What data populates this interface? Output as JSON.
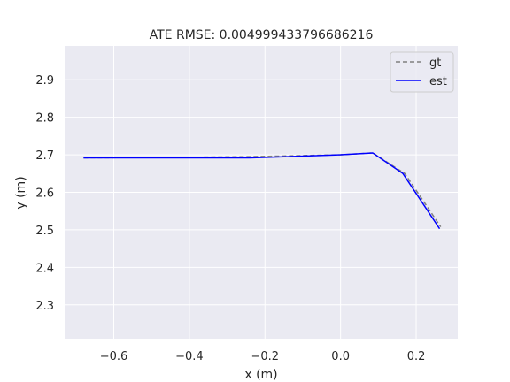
{
  "chart_data": {
    "type": "line",
    "title": "ATE RMSE: 0.004999433796686216",
    "xlabel": "x (m)",
    "ylabel": "y (m)",
    "xlim": [
      -0.73,
      0.31
    ],
    "ylim": [
      2.21,
      2.99
    ],
    "x_ticks": [
      -0.6,
      -0.4,
      -0.2,
      0.0,
      0.2
    ],
    "x_tick_labels": [
      "−0.6",
      "−0.4",
      "−0.2",
      "0.0",
      "0.2"
    ],
    "y_ticks": [
      2.3,
      2.4,
      2.5,
      2.6,
      2.7,
      2.8,
      2.9
    ],
    "y_tick_labels": [
      "2.3",
      "2.4",
      "2.5",
      "2.6",
      "2.7",
      "2.8",
      "2.9"
    ],
    "grid": true,
    "legend_position": "top-right",
    "series": [
      {
        "name": "gt",
        "style": "dashed",
        "color": "#808080",
        "x": [
          -0.68,
          -0.45,
          -0.25,
          -0.15,
          0.0,
          0.085,
          0.17,
          0.265
        ],
        "y": [
          2.692,
          2.693,
          2.695,
          2.697,
          2.7,
          2.705,
          2.65,
          2.508
        ]
      },
      {
        "name": "est",
        "style": "solid",
        "color": "#0000ff",
        "x": [
          -0.68,
          -0.45,
          -0.24,
          -0.15,
          0.0,
          0.085,
          0.165,
          0.262
        ],
        "y": [
          2.692,
          2.692,
          2.692,
          2.695,
          2.7,
          2.705,
          2.65,
          2.503
        ]
      }
    ]
  },
  "colors": {
    "plot_background": "#eaeaf2",
    "grid": "#ffffff",
    "text": "#262626"
  }
}
